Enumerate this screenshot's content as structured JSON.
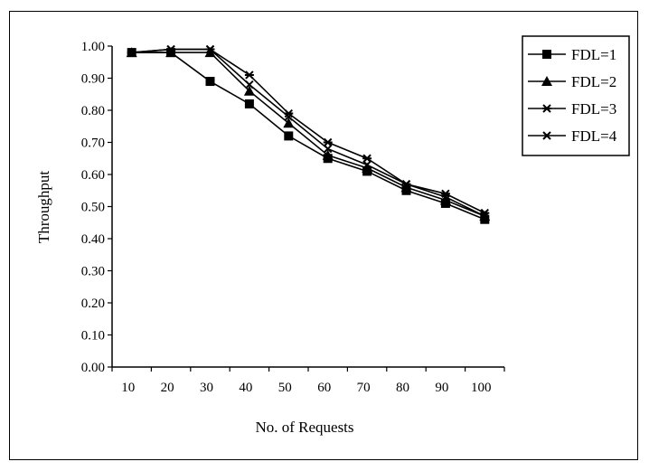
{
  "chart_data": {
    "type": "line",
    "title": "",
    "xlabel": "No. of Requests",
    "ylabel": "Throughput",
    "x_ticks": [
      "10",
      "20",
      "30",
      "40",
      "50",
      "60",
      "70",
      "80",
      "90",
      "100"
    ],
    "y_ticks": [
      "0.00",
      "0.10",
      "0.20",
      "0.30",
      "0.40",
      "0.50",
      "0.60",
      "0.70",
      "0.80",
      "0.90",
      "1.00"
    ],
    "ylim": [
      0,
      1.0
    ],
    "grid": false,
    "legend_position": "top-right",
    "series": [
      {
        "name": "FDL=1",
        "marker": "square",
        "values": [
          0.98,
          0.98,
          0.89,
          0.82,
          0.72,
          0.65,
          0.61,
          0.55,
          0.51,
          0.46
        ]
      },
      {
        "name": "FDL=2",
        "marker": "triangle",
        "values": [
          0.98,
          0.98,
          0.98,
          0.86,
          0.76,
          0.66,
          0.62,
          0.56,
          0.52,
          0.47
        ]
      },
      {
        "name": "FDL=3",
        "marker": "star",
        "values": [
          0.98,
          0.99,
          0.99,
          0.91,
          0.79,
          0.7,
          0.65,
          0.57,
          0.54,
          0.48
        ]
      },
      {
        "name": "FDL=4",
        "marker": "x",
        "values": [
          0.98,
          0.99,
          0.99,
          0.88,
          0.78,
          0.68,
          0.63,
          0.57,
          0.53,
          0.47
        ]
      }
    ],
    "colors": {
      "line": "#000000",
      "background": "#ffffff"
    }
  }
}
